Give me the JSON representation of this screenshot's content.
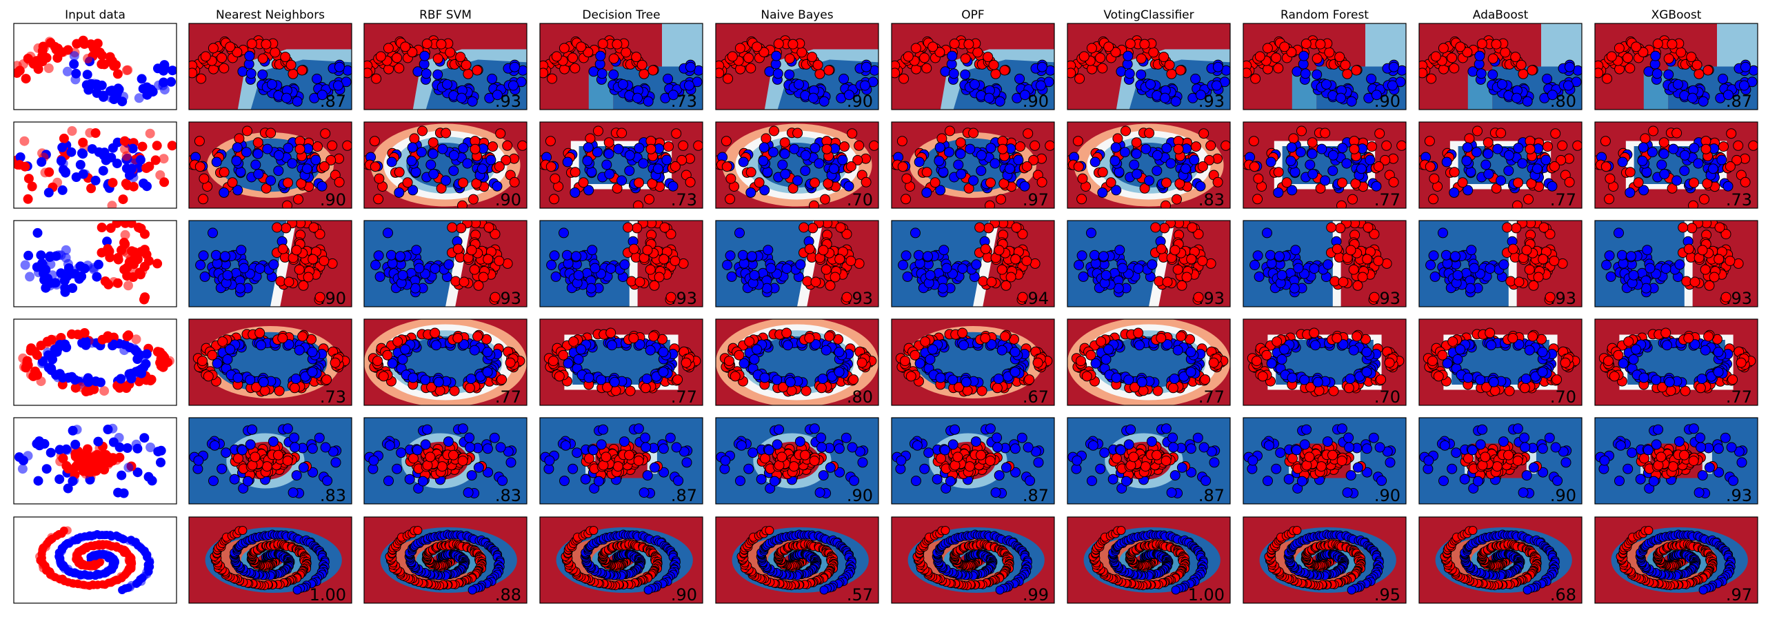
{
  "chart_data": {
    "type": "classifier-comparison-grid",
    "columns": [
      "Input data",
      "Nearest Neighbors",
      "RBF SVM",
      "Decision Tree",
      "Naive Bayes",
      "OPF",
      "VotingClassifier",
      "Random Forest",
      "AdaBoost",
      "XGBoost"
    ],
    "datasets": [
      "moons",
      "circles-wide",
      "linearly-separable",
      "circles",
      "gaussian-blob",
      "spirals"
    ],
    "scores": [
      [
        "",
        ".87",
        ".93",
        ".73",
        ".90",
        ".90",
        ".93",
        ".90",
        ".80",
        ".87"
      ],
      [
        "",
        ".90",
        ".90",
        ".73",
        ".70",
        ".97",
        ".83",
        ".77",
        ".77",
        ".73"
      ],
      [
        "",
        ".90",
        ".93",
        ".93",
        ".93",
        ".94",
        ".93",
        ".93",
        ".93",
        ".93"
      ],
      [
        "",
        ".73",
        ".77",
        ".77",
        ".80",
        ".67",
        ".77",
        ".70",
        ".70",
        ".77"
      ],
      [
        "",
        ".83",
        ".83",
        ".87",
        ".90",
        ".87",
        ".87",
        ".90",
        ".90",
        ".93"
      ],
      [
        "",
        "1.00",
        ".88",
        ".90",
        ".57",
        ".99",
        "1.00",
        ".95",
        ".68",
        ".97"
      ]
    ],
    "decision_surface": [
      "light",
      "smooth",
      "axis-aligned",
      "smooth",
      "irregular",
      "smooth",
      "axis-aligned",
      "axis-aligned",
      "axis-aligned"
    ],
    "colors": {
      "class_red": "#ff0000",
      "class_blue": "#0000ff",
      "cmap_red": [
        "#b2182b",
        "#d6604d",
        "#f4a582",
        "#fddbc7"
      ],
      "cmap_mid": "#f7f7f7",
      "cmap_blue": [
        "#d1e5f0",
        "#92c5de",
        "#4393c3",
        "#2166ac"
      ],
      "frame": "#000000"
    },
    "grid": false,
    "legend": "none"
  }
}
